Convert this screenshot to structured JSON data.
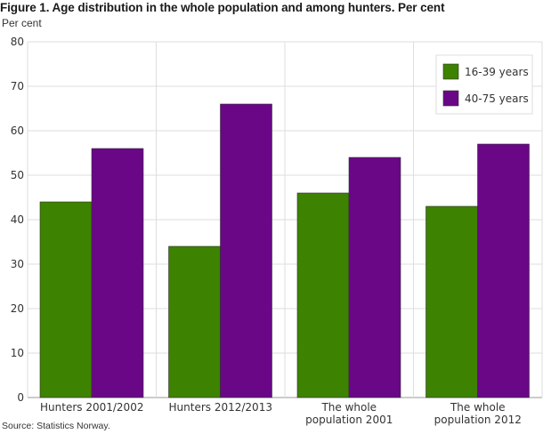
{
  "chart_data": {
    "type": "bar",
    "title": "Figure 1. Age distribution in the whole population and among hunters. Per cent",
    "ylabel": "Per cent",
    "xlabel": "",
    "ylim": [
      0,
      80
    ],
    "yticks": [
      0,
      10,
      20,
      30,
      40,
      50,
      60,
      70,
      80
    ],
    "grid": true,
    "legend_position": "top-right",
    "categories": [
      [
        "Hunters 2001/2002"
      ],
      [
        "Hunters 2012/2013"
      ],
      [
        "The whole",
        "population 2001"
      ],
      [
        "The whole",
        "population 2012"
      ]
    ],
    "series": [
      {
        "name": "16-39 years",
        "color": "#3d8200",
        "values": [
          44,
          34,
          46,
          43
        ]
      },
      {
        "name": "40-75 years",
        "color": "#6a0787",
        "values": [
          56,
          66,
          54,
          57
        ]
      }
    ],
    "source": "Source: Statistics Norway."
  }
}
